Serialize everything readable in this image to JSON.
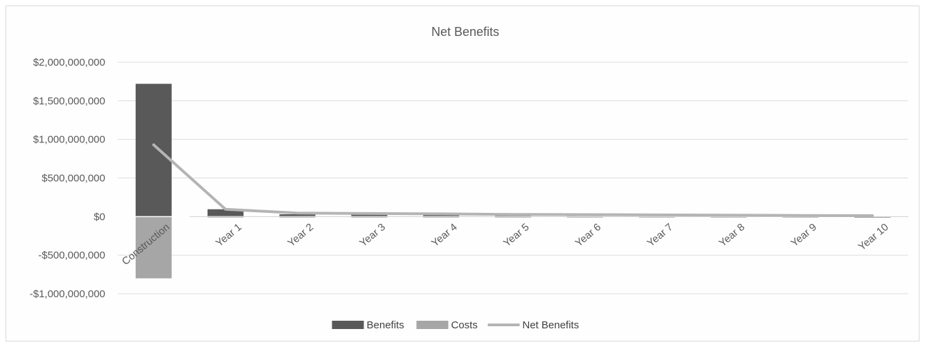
{
  "chart_data": {
    "type": "bar",
    "title": "Net Benefits",
    "xlabel": "",
    "ylabel": "",
    "categories": [
      "Construction",
      "Year 1",
      "Year 2",
      "Year 3",
      "Year 4",
      "Year 5",
      "Year 6",
      "Year 7",
      "Year 8",
      "Year 9",
      "Year 10"
    ],
    "ylim": [
      -1000000000,
      2000000000
    ],
    "y_ticks": [
      2000000000,
      1500000000,
      1000000000,
      500000000,
      0,
      -500000000,
      -1000000000
    ],
    "y_tick_labels": [
      "$2,000,000,000",
      "$1,500,000,000",
      "$1,000,000,000",
      "$500,000,000",
      "$0",
      "-$500,000,000",
      "-$1,000,000,000"
    ],
    "grid": true,
    "legend_position": "bottom",
    "series": [
      {
        "name": "Benefits",
        "type": "bar",
        "color": "#595959",
        "values": [
          1720000000,
          95000000,
          30000000,
          28000000,
          25000000,
          22000000,
          20000000,
          18000000,
          16000000,
          14000000,
          -15000000
        ]
      },
      {
        "name": "Costs",
        "type": "bar",
        "color": "#a6a6a6",
        "values": [
          -800000000,
          -3000000,
          -3000000,
          -3000000,
          -3000000,
          -3000000,
          -3000000,
          -3000000,
          -3000000,
          -3000000,
          -3000000
        ]
      },
      {
        "name": "Net Benefits",
        "type": "line",
        "color": "#b4b4b4",
        "values": [
          930000000,
          95000000,
          45000000,
          40000000,
          35000000,
          28000000,
          25000000,
          22000000,
          18000000,
          15000000,
          12000000
        ]
      }
    ]
  }
}
